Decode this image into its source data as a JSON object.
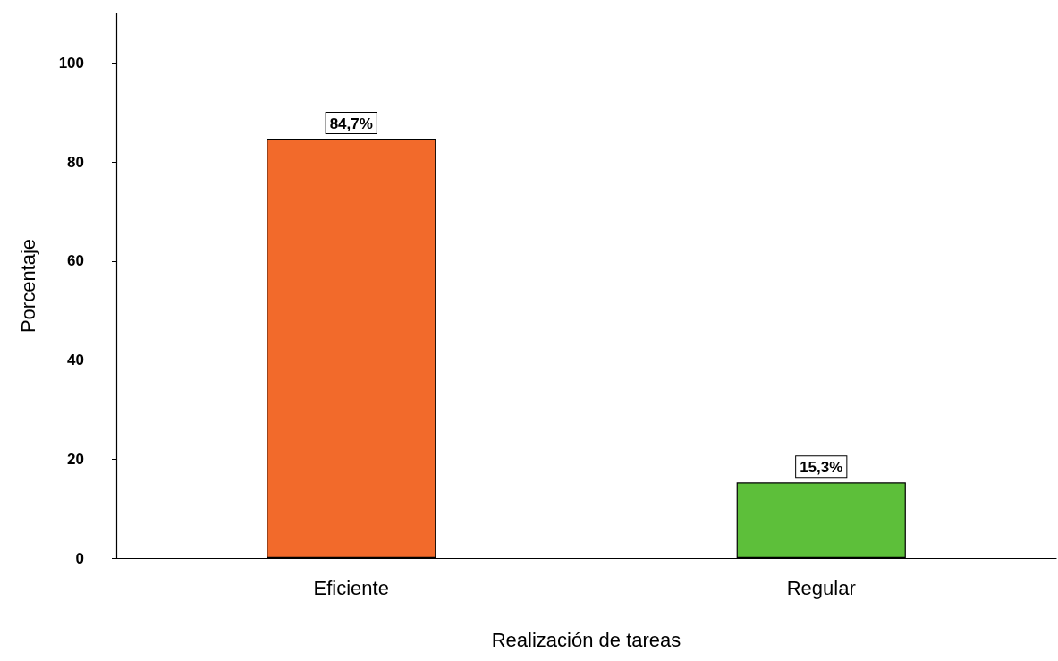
{
  "chart_data": {
    "type": "bar",
    "xlabel": "Realización de tareas",
    "ylabel": "Porcentaje",
    "categories": [
      "Eficiente",
      "Regular"
    ],
    "values": [
      84.7,
      15.3
    ],
    "colors": [
      "#f26a2b",
      "#5dbf3a"
    ],
    "value_labels": [
      "84,7%",
      "15,3%"
    ],
    "ylim": [
      0,
      110
    ],
    "yticks": [
      0,
      20,
      40,
      60,
      80,
      100
    ],
    "grid": false
  }
}
